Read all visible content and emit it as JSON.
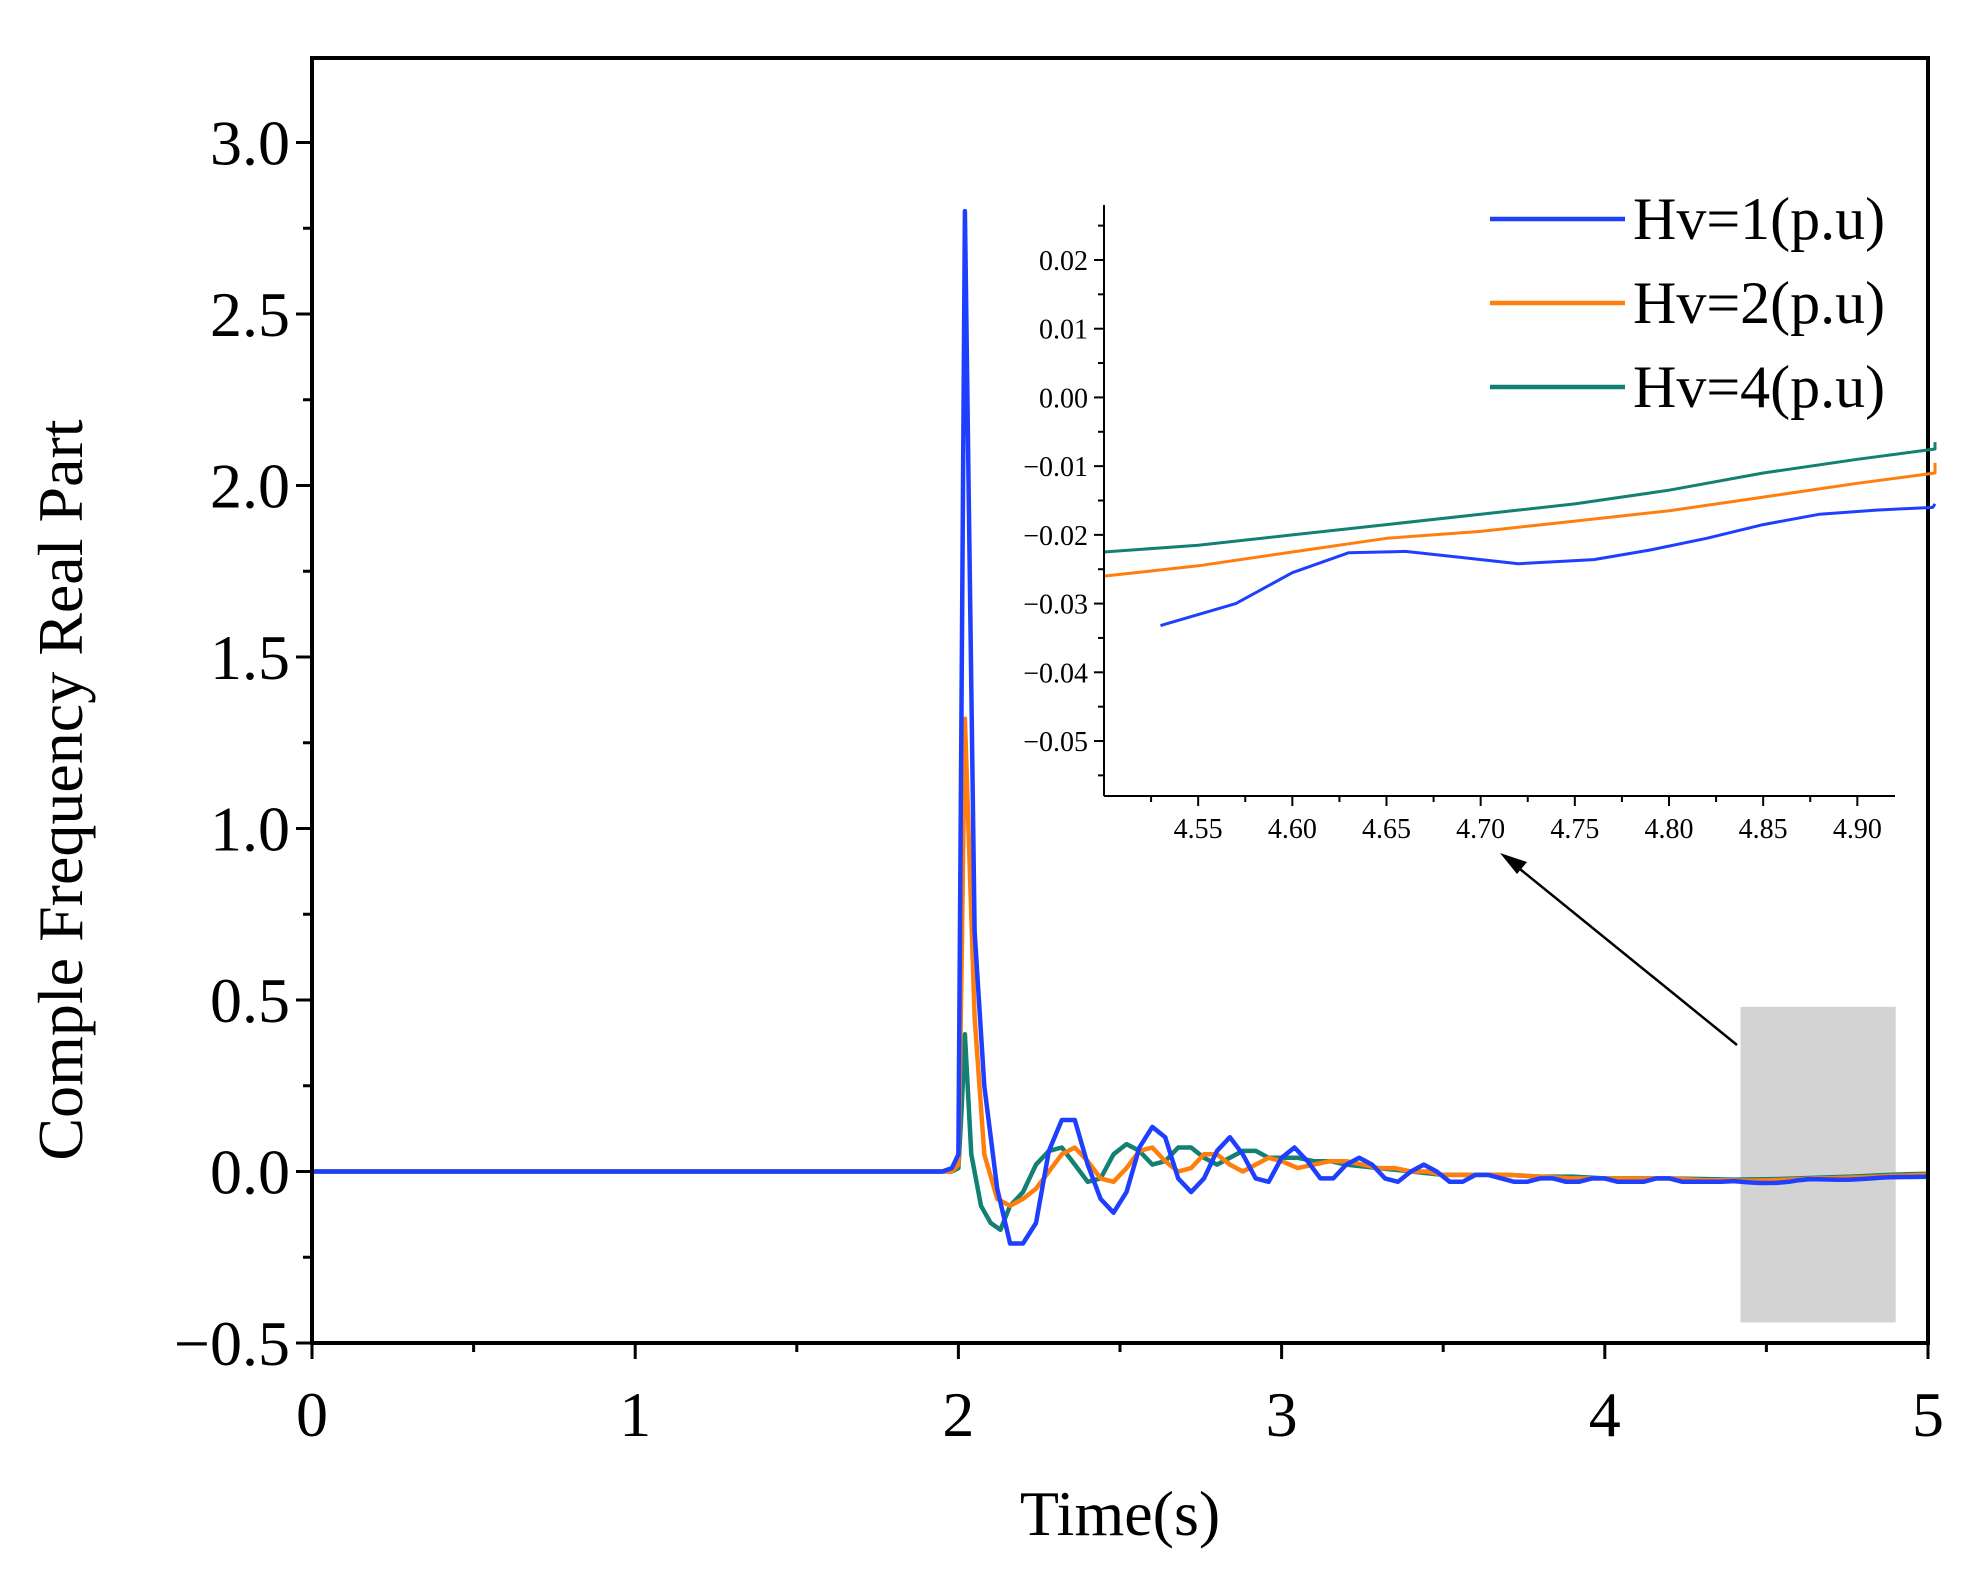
{
  "chart_data": [
    {
      "type": "line",
      "xlabel": "Time(s)",
      "ylabel": "Comple Frequency Real Part",
      "xlim": [
        0,
        5
      ],
      "ylim": [
        -0.5,
        3.25
      ],
      "xticks": [
        "0",
        "1",
        "2",
        "3",
        "4",
        "5"
      ],
      "yticks": [
        "−0.5",
        "0.0",
        "0.5",
        "1.0",
        "1.5",
        "2.0",
        "2.5",
        "3.0"
      ],
      "highlight_region": {
        "x": [
          4.42,
          4.9
        ],
        "y": [
          -0.44,
          0.48
        ]
      },
      "series": [
        {
          "name": "Hv=1(p.u)",
          "color": "#1f3fff",
          "x": [
            0,
            1.95,
            1.98,
            2.0,
            2.01,
            2.02,
            2.05,
            2.08,
            2.12,
            2.16,
            2.2,
            2.24,
            2.28,
            2.32,
            2.36,
            2.4,
            2.44,
            2.48,
            2.52,
            2.56,
            2.6,
            2.64,
            2.68,
            2.72,
            2.76,
            2.8,
            2.84,
            2.88,
            2.92,
            2.96,
            3.0,
            3.04,
            3.08,
            3.12,
            3.16,
            3.2,
            3.24,
            3.28,
            3.32,
            3.36,
            3.4,
            3.44,
            3.48,
            3.52,
            3.56,
            3.6,
            3.64,
            3.68,
            3.72,
            3.76,
            3.8,
            3.84,
            3.88,
            3.92,
            3.96,
            4.0,
            4.04,
            4.08,
            4.12,
            4.16,
            4.2,
            4.24,
            4.28,
            4.32,
            4.36,
            4.4,
            4.44,
            4.48,
            4.53,
            4.57,
            4.6,
            4.63,
            4.66,
            4.69,
            4.72,
            4.76,
            4.79,
            4.82,
            4.85,
            4.88,
            4.91,
            4.94,
            5.0
          ],
          "y": [
            0,
            0,
            0.01,
            0.05,
            1.4,
            2.8,
            0.7,
            0.25,
            -0.05,
            -0.21,
            -0.21,
            -0.15,
            0.06,
            0.15,
            0.15,
            0.02,
            -0.08,
            -0.12,
            -0.06,
            0.07,
            0.13,
            0.1,
            -0.02,
            -0.06,
            -0.02,
            0.06,
            0.1,
            0.05,
            -0.02,
            -0.03,
            0.04,
            0.07,
            0.03,
            -0.02,
            -0.02,
            0.02,
            0.04,
            0.02,
            -0.02,
            -0.03,
            0.0,
            0.02,
            0.0,
            -0.03,
            -0.03,
            -0.01,
            -0.01,
            -0.02,
            -0.03,
            -0.03,
            -0.02,
            -0.02,
            -0.03,
            -0.03,
            -0.02,
            -0.02,
            -0.03,
            -0.03,
            -0.03,
            -0.02,
            -0.02,
            -0.03,
            -0.03,
            -0.03,
            -0.03,
            -0.028,
            -0.0315,
            -0.0335,
            -0.0332,
            -0.03,
            -0.0255,
            -0.0226,
            -0.0224,
            -0.0233,
            -0.0242,
            -0.0236,
            -0.0222,
            -0.0205,
            -0.0185,
            -0.017,
            -0.0164,
            -0.016,
            -0.0155
          ]
        },
        {
          "name": "Hv=2(p.u)",
          "color": "#ff7f0e",
          "x": [
            0,
            1.95,
            1.98,
            2.0,
            2.01,
            2.02,
            2.05,
            2.08,
            2.12,
            2.16,
            2.2,
            2.24,
            2.28,
            2.32,
            2.36,
            2.4,
            2.44,
            2.48,
            2.52,
            2.56,
            2.6,
            2.64,
            2.68,
            2.72,
            2.76,
            2.8,
            2.84,
            2.88,
            2.92,
            2.96,
            3.0,
            3.05,
            3.1,
            3.15,
            3.2,
            3.25,
            3.3,
            3.35,
            3.4,
            3.45,
            3.5,
            3.6,
            3.7,
            3.8,
            3.9,
            4.0,
            4.1,
            4.2,
            4.3,
            4.4,
            4.45,
            4.5,
            4.55,
            4.6,
            4.65,
            4.7,
            4.75,
            4.8,
            4.85,
            4.9,
            4.95,
            5.0
          ],
          "y": [
            0,
            0,
            0.0,
            0.02,
            0.6,
            1.32,
            0.45,
            0.05,
            -0.08,
            -0.1,
            -0.08,
            -0.05,
            0.0,
            0.05,
            0.07,
            0.03,
            -0.02,
            -0.03,
            0.01,
            0.06,
            0.07,
            0.03,
            0.0,
            0.01,
            0.05,
            0.05,
            0.02,
            0.0,
            0.02,
            0.04,
            0.03,
            0.01,
            0.02,
            0.03,
            0.03,
            0.02,
            0.01,
            0.01,
            0.0,
            0.0,
            -0.01,
            -0.01,
            -0.01,
            -0.015,
            -0.02,
            -0.02,
            -0.02,
            -0.02,
            -0.025,
            -0.026,
            -0.0265,
            -0.026,
            -0.0245,
            -0.0225,
            -0.0205,
            -0.0195,
            -0.018,
            -0.0165,
            -0.0145,
            -0.0125,
            -0.011,
            -0.0095
          ]
        },
        {
          "name": "Hv=4(p.u)",
          "color": "#138074",
          "x": [
            0,
            1.95,
            1.98,
            2.0,
            2.01,
            2.02,
            2.04,
            2.07,
            2.1,
            2.13,
            2.16,
            2.2,
            2.24,
            2.28,
            2.32,
            2.36,
            2.4,
            2.44,
            2.48,
            2.52,
            2.56,
            2.6,
            2.64,
            2.68,
            2.72,
            2.76,
            2.8,
            2.84,
            2.88,
            2.92,
            2.96,
            3.0,
            3.05,
            3.1,
            3.15,
            3.2,
            3.3,
            3.4,
            3.5,
            3.6,
            3.7,
            3.8,
            3.9,
            4.0,
            4.1,
            4.2,
            4.3,
            4.4,
            4.45,
            4.5,
            4.55,
            4.6,
            4.65,
            4.7,
            4.75,
            4.8,
            4.85,
            4.9,
            4.95,
            5.0
          ],
          "y": [
            0,
            0,
            0.0,
            0.01,
            0.18,
            0.4,
            0.05,
            -0.1,
            -0.15,
            -0.17,
            -0.1,
            -0.06,
            0.02,
            0.06,
            0.07,
            0.02,
            -0.03,
            -0.02,
            0.05,
            0.08,
            0.06,
            0.02,
            0.03,
            0.07,
            0.07,
            0.04,
            0.02,
            0.04,
            0.06,
            0.06,
            0.04,
            0.04,
            0.04,
            0.03,
            0.03,
            0.02,
            0.01,
            0.0,
            -0.01,
            -0.01,
            -0.01,
            -0.015,
            -0.015,
            -0.02,
            -0.02,
            -0.02,
            -0.022,
            -0.0235,
            -0.023,
            -0.0225,
            -0.0215,
            -0.02,
            -0.0185,
            -0.017,
            -0.0155,
            -0.0135,
            -0.011,
            -0.009,
            -0.0075,
            -0.0065
          ]
        }
      ]
    },
    {
      "type": "line",
      "title": "",
      "xlim": [
        4.5,
        4.92
      ],
      "ylim": [
        -0.058,
        0.028
      ],
      "xticks": [
        "4.55",
        "4.60",
        "4.65",
        "4.70",
        "4.75",
        "4.80",
        "4.85",
        "4.90"
      ],
      "yticks": [
        "0.02",
        "0.01",
        "0.00",
        "−0.01",
        "−0.02",
        "−0.03",
        "−0.04",
        "−0.05"
      ],
      "series_names": [
        "Hv=1(p.u)",
        "Hv=2(p.u)",
        "Hv=4(p.u)"
      ]
    }
  ]
}
